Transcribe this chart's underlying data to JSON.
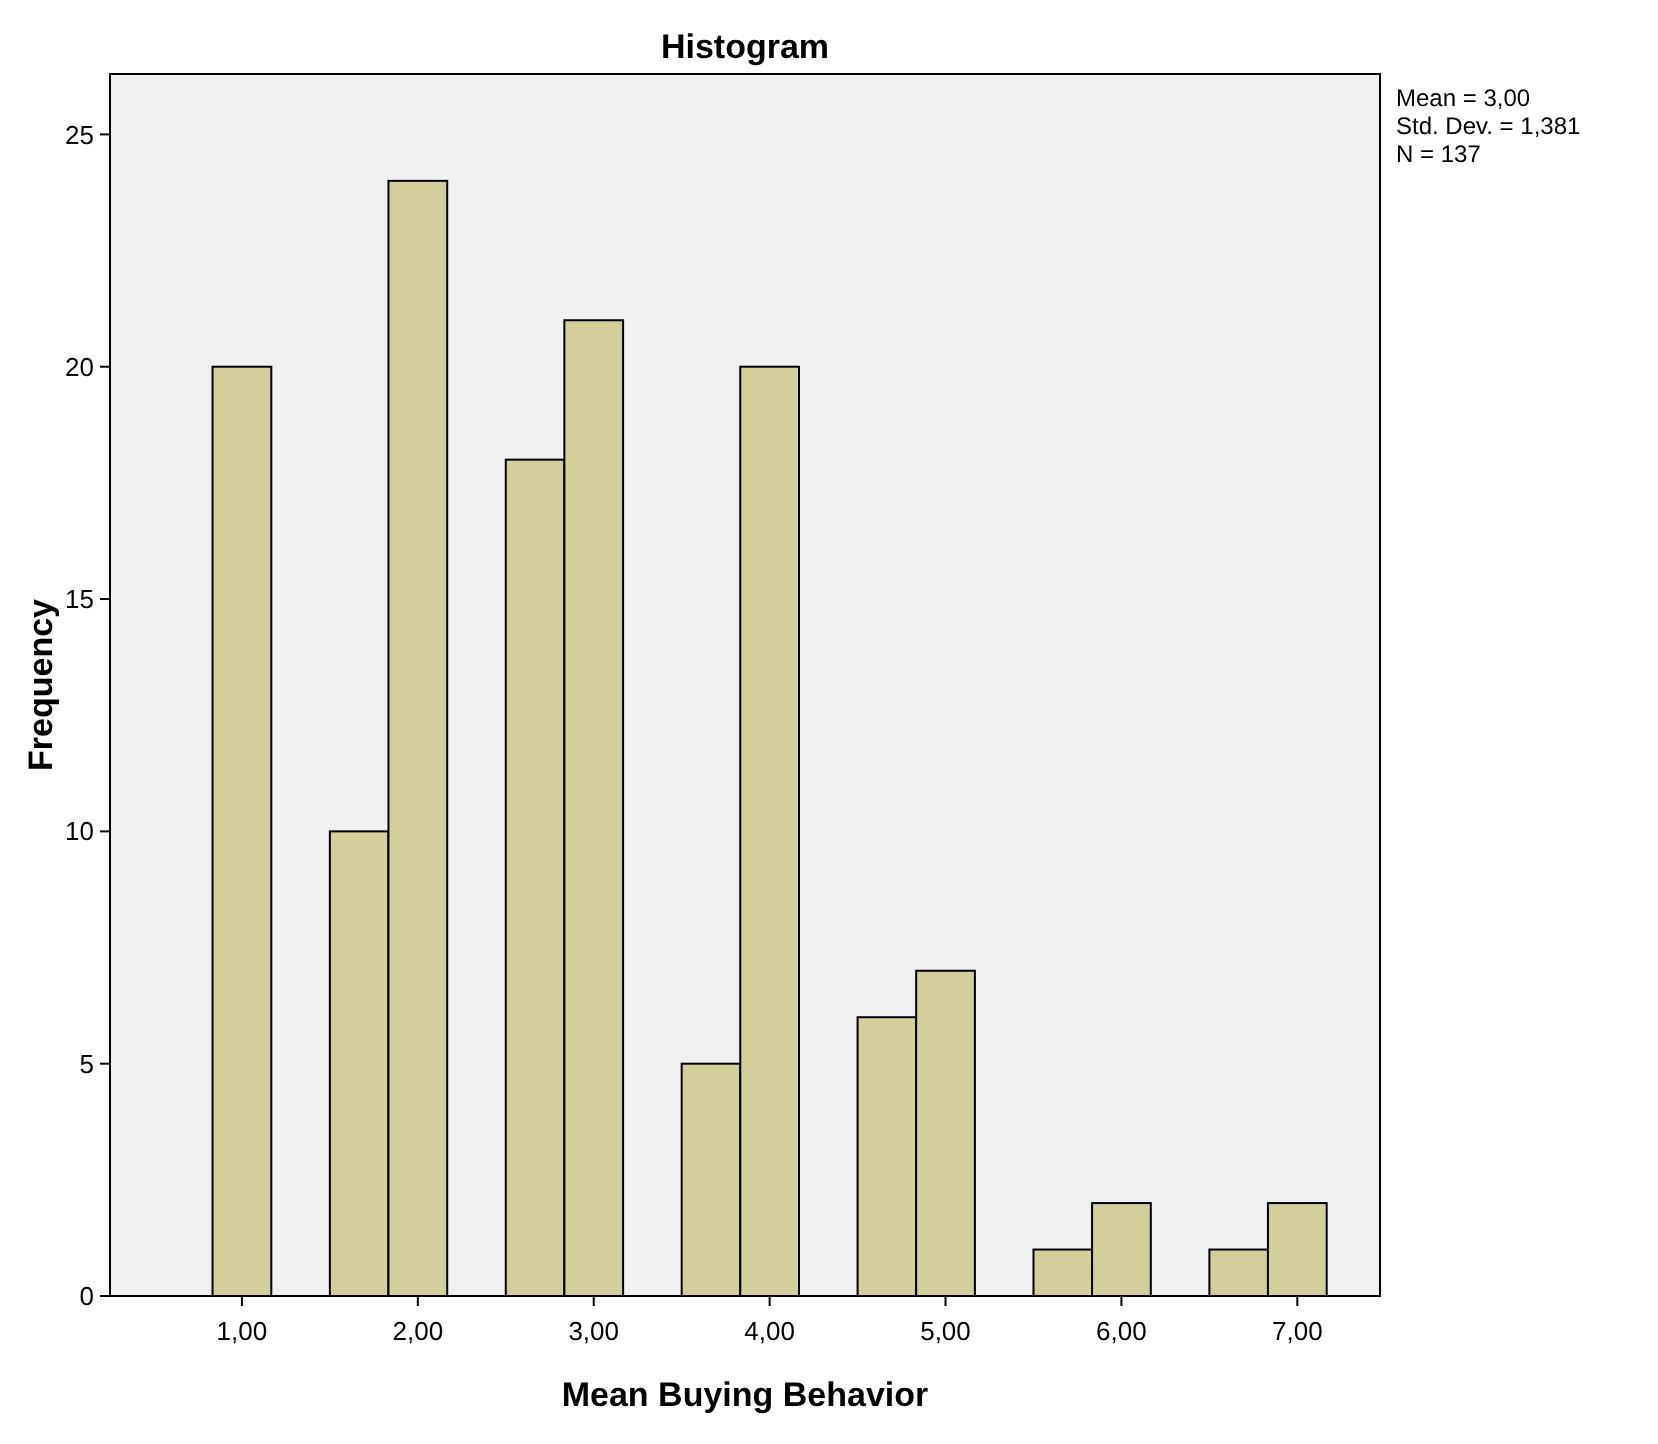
{
  "chart_data": {
    "type": "histogram",
    "title": "Histogram",
    "xlabel": "Mean Buying Behavior",
    "ylabel": "Frequency",
    "bins": [
      0.833,
      1.167,
      1.5,
      1.833,
      2.167,
      2.5,
      2.833,
      3.167,
      3.5,
      3.833,
      4.167,
      4.5,
      4.833,
      5.167,
      5.5,
      5.833,
      6.167,
      6.5,
      6.833,
      7.167
    ],
    "values": [
      20,
      0,
      10,
      24,
      0,
      18,
      21,
      0,
      5,
      20,
      0,
      6,
      7,
      0,
      1,
      2,
      0,
      1,
      2
    ],
    "color": "#d3ce9a",
    "xlim": [
      0.25,
      7.47
    ],
    "ylim": [
      0,
      26.3
    ],
    "xticks": [
      {
        "value": 1,
        "label": "1,00"
      },
      {
        "value": 2,
        "label": "2,00"
      },
      {
        "value": 3,
        "label": "3,00"
      },
      {
        "value": 4,
        "label": "4,00"
      },
      {
        "value": 5,
        "label": "5,00"
      },
      {
        "value": 6,
        "label": "6,00"
      },
      {
        "value": 7,
        "label": "7,00"
      }
    ],
    "yticks": [
      0,
      5,
      10,
      15,
      20,
      25
    ],
    "grid": false,
    "annotations": [
      "Mean = 3,00",
      "Std. Dev. = 1,381",
      "N = 137"
    ]
  }
}
